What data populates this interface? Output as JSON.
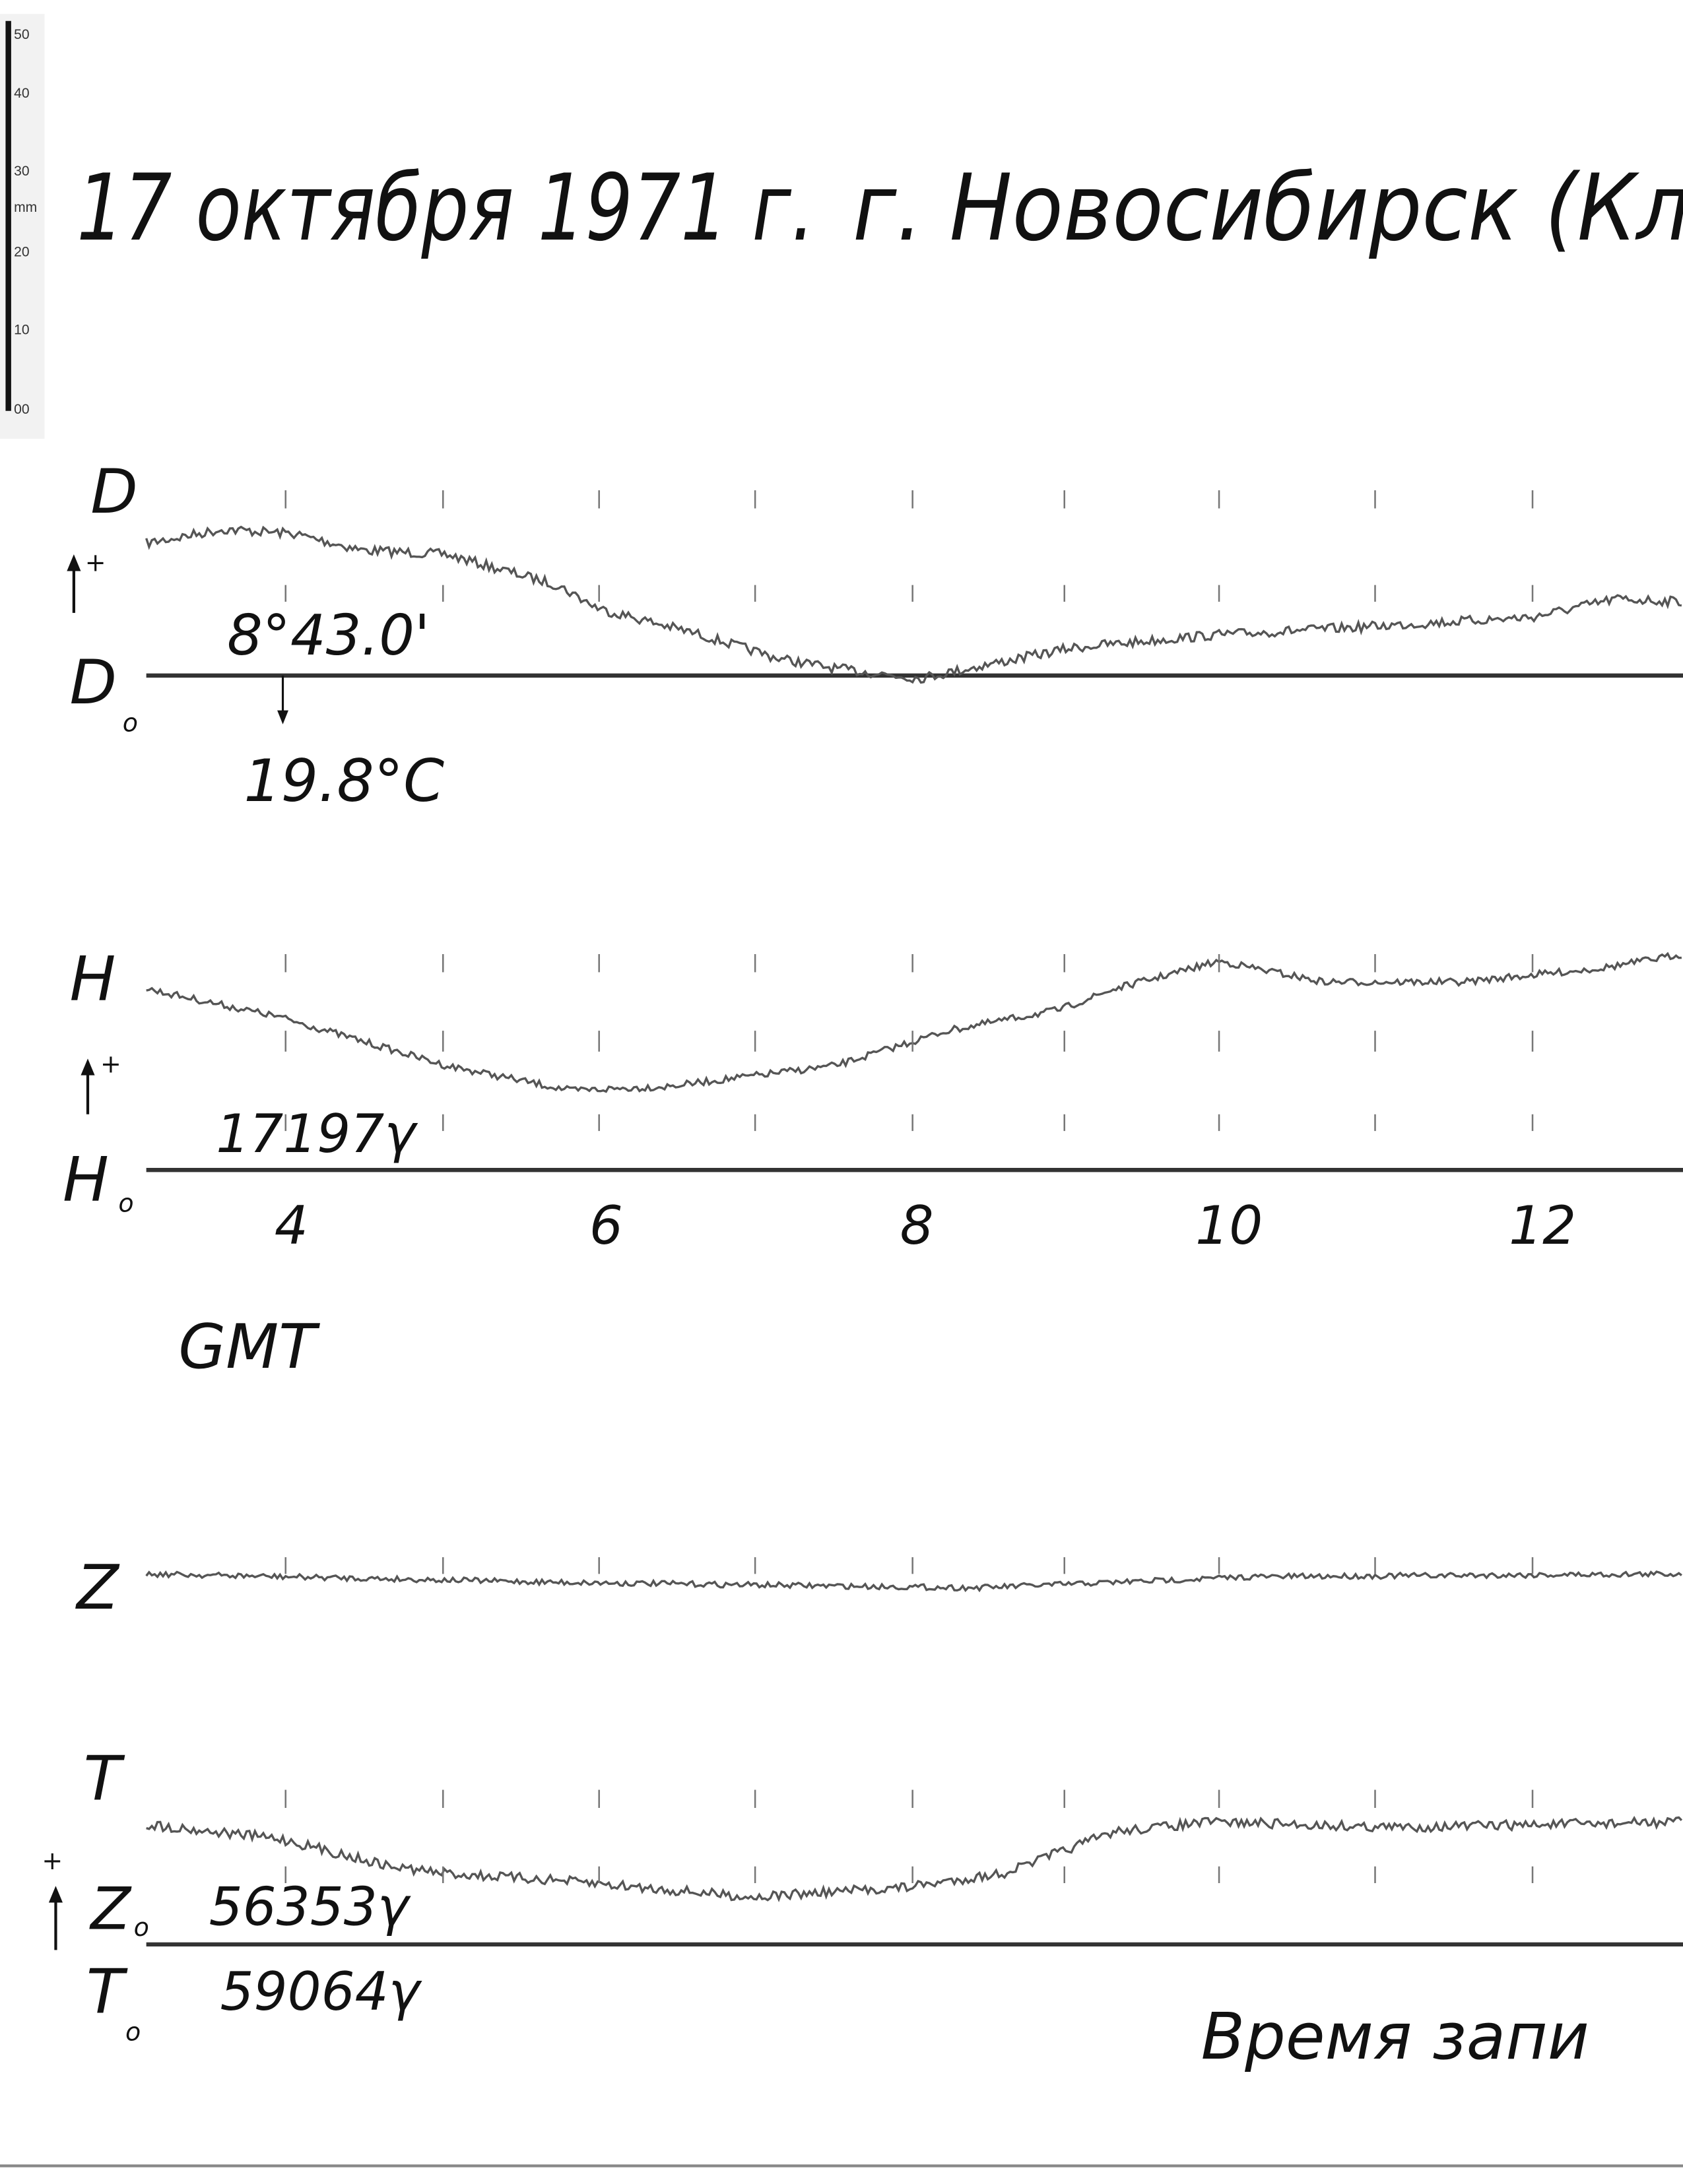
{
  "ruler": {
    "labels": [
      "50",
      "40",
      "30",
      "mm",
      "20",
      "10",
      "00"
    ]
  },
  "header": {
    "date": "17 октября 1971 г.",
    "place": "г. Новосибирск (Клн"
  },
  "panels": {
    "d": {
      "label": "D",
      "base_label": "D",
      "base_sub": "o",
      "sign": "+",
      "base_value": "8°43.0'",
      "temperature": "19.8°C"
    },
    "h": {
      "label": "H",
      "base_label": "H",
      "base_sub": "o",
      "sign": "+",
      "base_value": "17197γ"
    },
    "z": {
      "label": "Z"
    },
    "t": {
      "label": "T",
      "sign": "+",
      "z_base_label": "Z",
      "z_base_sub": "o",
      "z_base_value": "56353γ",
      "t_base_label": "T",
      "t_base_sub": "o",
      "t_base_value": "59064γ"
    }
  },
  "time_axis": {
    "labels": [
      "4",
      "6",
      "8",
      "10",
      "12"
    ],
    "unit": "GMT"
  },
  "footer": {
    "note": "Время запи"
  }
}
